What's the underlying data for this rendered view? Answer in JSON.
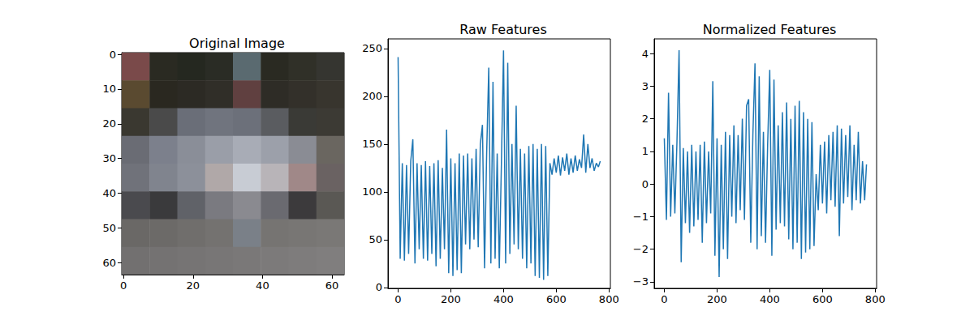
{
  "chart_data": [
    {
      "type": "image",
      "title": "Original Image",
      "pixels": [
        [
          "#7a4a4a",
          "#2a2a22",
          "#252820",
          "#2a2c25",
          "#5a6a70",
          "#2a2a22",
          "#303028",
          "#353530"
        ],
        [
          "#5a4a30",
          "#2a2820",
          "#2c2a24",
          "#302e28",
          "#604040",
          "#2e2c26",
          "#33302a",
          "#38352e"
        ],
        [
          "#3a3830",
          "#4a4a4a",
          "#6a6e78",
          "#70747e",
          "#6c707a",
          "#5a5c60",
          "#3a3a36",
          "#3c3a34"
        ],
        [
          "#6a6c74",
          "#7c808c",
          "#8a8e98",
          "#9a9ea8",
          "#a8acb6",
          "#9ca0aa",
          "#8a8c94",
          "#6a6660"
        ],
        [
          "#70727a",
          "#80848e",
          "#8c909a",
          "#b0a8a8",
          "#c8ccd4",
          "#b8b4b8",
          "#a08888",
          "#6a6262"
        ],
        [
          "#4a4a4e",
          "#3a3a3c",
          "#606268",
          "#7a7a80",
          "#8a8a90",
          "#6a6a70",
          "#3c3a3c",
          "#5a5854"
        ],
        [
          "#6a6866",
          "#6c6a68",
          "#706e6c",
          "#747270",
          "#7a8088",
          "#767472",
          "#787674",
          "#7a7876"
        ],
        [
          "#727070",
          "#747272",
          "#767474",
          "#787676",
          "#7a7878",
          "#7c7a7a",
          "#7e7c7c",
          "#807e7e"
        ]
      ],
      "xlim": [
        -0.5,
        63.5
      ],
      "ylim": [
        63.5,
        -0.5
      ],
      "xticks": [
        0,
        20,
        40,
        60
      ],
      "yticks": [
        0,
        10,
        20,
        30,
        40,
        50,
        60
      ]
    },
    {
      "type": "line",
      "title": "Raw Features",
      "color": "#1f77b4",
      "x": [
        0,
        8,
        16,
        24,
        32,
        40,
        48,
        56,
        64,
        72,
        80,
        88,
        96,
        104,
        112,
        120,
        128,
        136,
        144,
        152,
        160,
        168,
        176,
        184,
        192,
        200,
        208,
        216,
        224,
        232,
        240,
        248,
        256,
        264,
        272,
        280,
        288,
        296,
        304,
        312,
        320,
        328,
        336,
        344,
        352,
        360,
        368,
        376,
        384,
        392,
        400,
        408,
        416,
        424,
        432,
        440,
        448,
        456,
        464,
        472,
        480,
        488,
        496,
        504,
        512,
        520,
        528,
        536,
        544,
        552,
        560,
        568,
        576,
        584,
        592,
        600,
        608,
        616,
        624,
        632,
        640,
        648,
        656,
        664,
        672,
        680,
        688,
        696,
        704,
        712,
        720,
        728,
        736,
        744,
        752,
        760,
        767
      ],
      "values": [
        241,
        30,
        130,
        28,
        128,
        35,
        132,
        155,
        25,
        130,
        40,
        128,
        30,
        132,
        28,
        127,
        35,
        130,
        22,
        133,
        30,
        125,
        40,
        165,
        15,
        135,
        12,
        130,
        18,
        140,
        15,
        138,
        45,
        140,
        40,
        135,
        50,
        145,
        42,
        150,
        170,
        20,
        140,
        230,
        25,
        215,
        30,
        140,
        20,
        130,
        248,
        25,
        235,
        35,
        150,
        45,
        190,
        40,
        145,
        30,
        140,
        20,
        148,
        25,
        150,
        12,
        145,
        10,
        150,
        8,
        148,
        12,
        130,
        118,
        135,
        120,
        138,
        117,
        136,
        122,
        140,
        118,
        135,
        120,
        138,
        122,
        134,
        125,
        160,
        120,
        150,
        125,
        135,
        122,
        130,
        126,
        132
      ],
      "xlim": [
        -38.35,
        805.35
      ],
      "ylim": [
        -1,
        260
      ],
      "xticks": [
        0,
        200,
        400,
        600,
        800
      ],
      "yticks": [
        0,
        50,
        100,
        150,
        200,
        250
      ]
    },
    {
      "type": "line",
      "title": "Normalized Features",
      "color": "#1f77b4",
      "x": [
        0,
        8,
        16,
        24,
        32,
        40,
        48,
        56,
        64,
        72,
        80,
        88,
        96,
        104,
        112,
        120,
        128,
        136,
        144,
        152,
        160,
        168,
        176,
        184,
        192,
        200,
        208,
        216,
        224,
        232,
        240,
        248,
        256,
        264,
        272,
        280,
        288,
        296,
        304,
        312,
        320,
        328,
        336,
        344,
        352,
        360,
        368,
        376,
        384,
        392,
        400,
        408,
        416,
        424,
        432,
        440,
        448,
        456,
        464,
        472,
        480,
        488,
        496,
        504,
        512,
        520,
        528,
        536,
        544,
        552,
        560,
        568,
        576,
        584,
        592,
        600,
        608,
        616,
        624,
        632,
        640,
        648,
        656,
        664,
        672,
        680,
        688,
        696,
        704,
        712,
        720,
        728,
        736,
        744,
        752,
        760,
        767
      ],
      "values": [
        1.4,
        -1.1,
        2.8,
        -1.0,
        1.2,
        -0.9,
        1.3,
        4.1,
        -2.4,
        1.1,
        -1.2,
        1.0,
        -1.5,
        1.2,
        -1.3,
        1.0,
        -1.1,
        1.2,
        -1.8,
        1.3,
        -1.2,
        1.0,
        -0.9,
        3.15,
        -2.2,
        1.4,
        -2.85,
        1.2,
        -2.0,
        1.6,
        -2.3,
        1.5,
        -1.0,
        1.8,
        -1.2,
        1.5,
        -0.8,
        2.0,
        -1.1,
        2.4,
        2.6,
        -1.8,
        1.5,
        3.7,
        -2.0,
        3.3,
        -1.6,
        1.6,
        -1.8,
        1.2,
        3.5,
        -2.2,
        3.2,
        -1.4,
        1.8,
        -1.2,
        2.2,
        -1.3,
        2.5,
        -1.7,
        2.0,
        -2.0,
        2.4,
        -1.8,
        2.55,
        -2.3,
        2.2,
        -2.1,
        2.0,
        -2.0,
        1.9,
        -1.9,
        0.3,
        -0.8,
        1.2,
        -0.6,
        1.3,
        -0.9,
        1.5,
        -0.5,
        1.6,
        -0.7,
        1.8,
        -1.6,
        1.7,
        -0.6,
        1.5,
        -0.4,
        1.8,
        -0.8,
        1.2,
        -0.5,
        1.6,
        -0.6,
        0.7,
        -0.5,
        0.6
      ],
      "xlim": [
        -38.35,
        805.35
      ],
      "ylim": [
        -3.2,
        4.45
      ],
      "xticks": [
        0,
        200,
        400,
        600,
        800
      ],
      "yticks": [
        {
          "value": -3,
          "label": "−3"
        },
        {
          "value": -2,
          "label": "−2"
        },
        {
          "value": -1,
          "label": "−1"
        },
        0,
        1,
        2,
        3,
        4
      ]
    }
  ]
}
